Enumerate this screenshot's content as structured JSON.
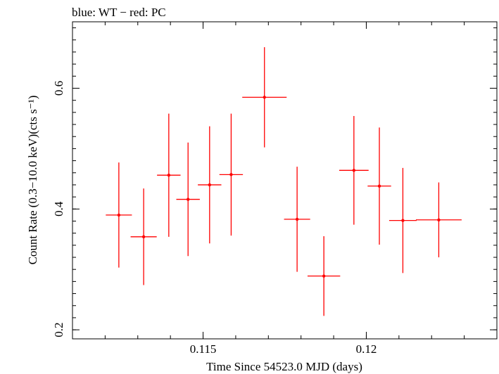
{
  "chart_data": {
    "type": "scatter",
    "title": "blue: WT − red: PC",
    "xlabel": "Time Since 54523.0 MJD (days)",
    "ylabel": "Count Rate (0.3−10.0 keV)(cts s⁻¹)",
    "xlim": [
      0.111,
      0.124
    ],
    "ylim": [
      0.185,
      0.71
    ],
    "x_ticks": [
      0.115,
      0.12
    ],
    "x_tick_labels": [
      "0.115",
      "0.12"
    ],
    "y_ticks": [
      0.2,
      0.4,
      0.6
    ],
    "y_tick_labels": [
      "0.2",
      "0.4",
      "0.6"
    ],
    "grid": false,
    "series": [
      {
        "color": "#ff0000",
        "points": [
          {
            "x": 0.11242,
            "xerr": 0.0004,
            "y": 0.39,
            "yerr": 0.087
          },
          {
            "x": 0.11318,
            "xerr": 0.0004,
            "y": 0.354,
            "yerr": 0.08
          },
          {
            "x": 0.11395,
            "xerr": 0.00036,
            "y": 0.456,
            "yerr": 0.102
          },
          {
            "x": 0.11454,
            "xerr": 0.00036,
            "y": 0.416,
            "yerr": 0.094
          },
          {
            "x": 0.1152,
            "xerr": 0.00036,
            "y": 0.44,
            "yerr": 0.097
          },
          {
            "x": 0.11586,
            "xerr": 0.00036,
            "y": 0.457,
            "yerr": 0.101
          },
          {
            "x": 0.11688,
            "xerr": 0.00068,
            "y": 0.585,
            "yerr": 0.083
          },
          {
            "x": 0.11788,
            "xerr": 0.0004,
            "y": 0.383,
            "yerr": 0.087
          },
          {
            "x": 0.1187,
            "xerr": 0.0005,
            "y": 0.289,
            "yerr": 0.066
          },
          {
            "x": 0.11962,
            "xerr": 0.00045,
            "y": 0.464,
            "yerr": 0.09
          },
          {
            "x": 0.1204,
            "xerr": 0.00036,
            "y": 0.438,
            "yerr": 0.097
          },
          {
            "x": 0.12112,
            "xerr": 0.00042,
            "y": 0.381,
            "yerr": 0.087
          },
          {
            "x": 0.12222,
            "xerr": 0.0007,
            "y": 0.382,
            "yerr": 0.062
          }
        ]
      }
    ]
  }
}
